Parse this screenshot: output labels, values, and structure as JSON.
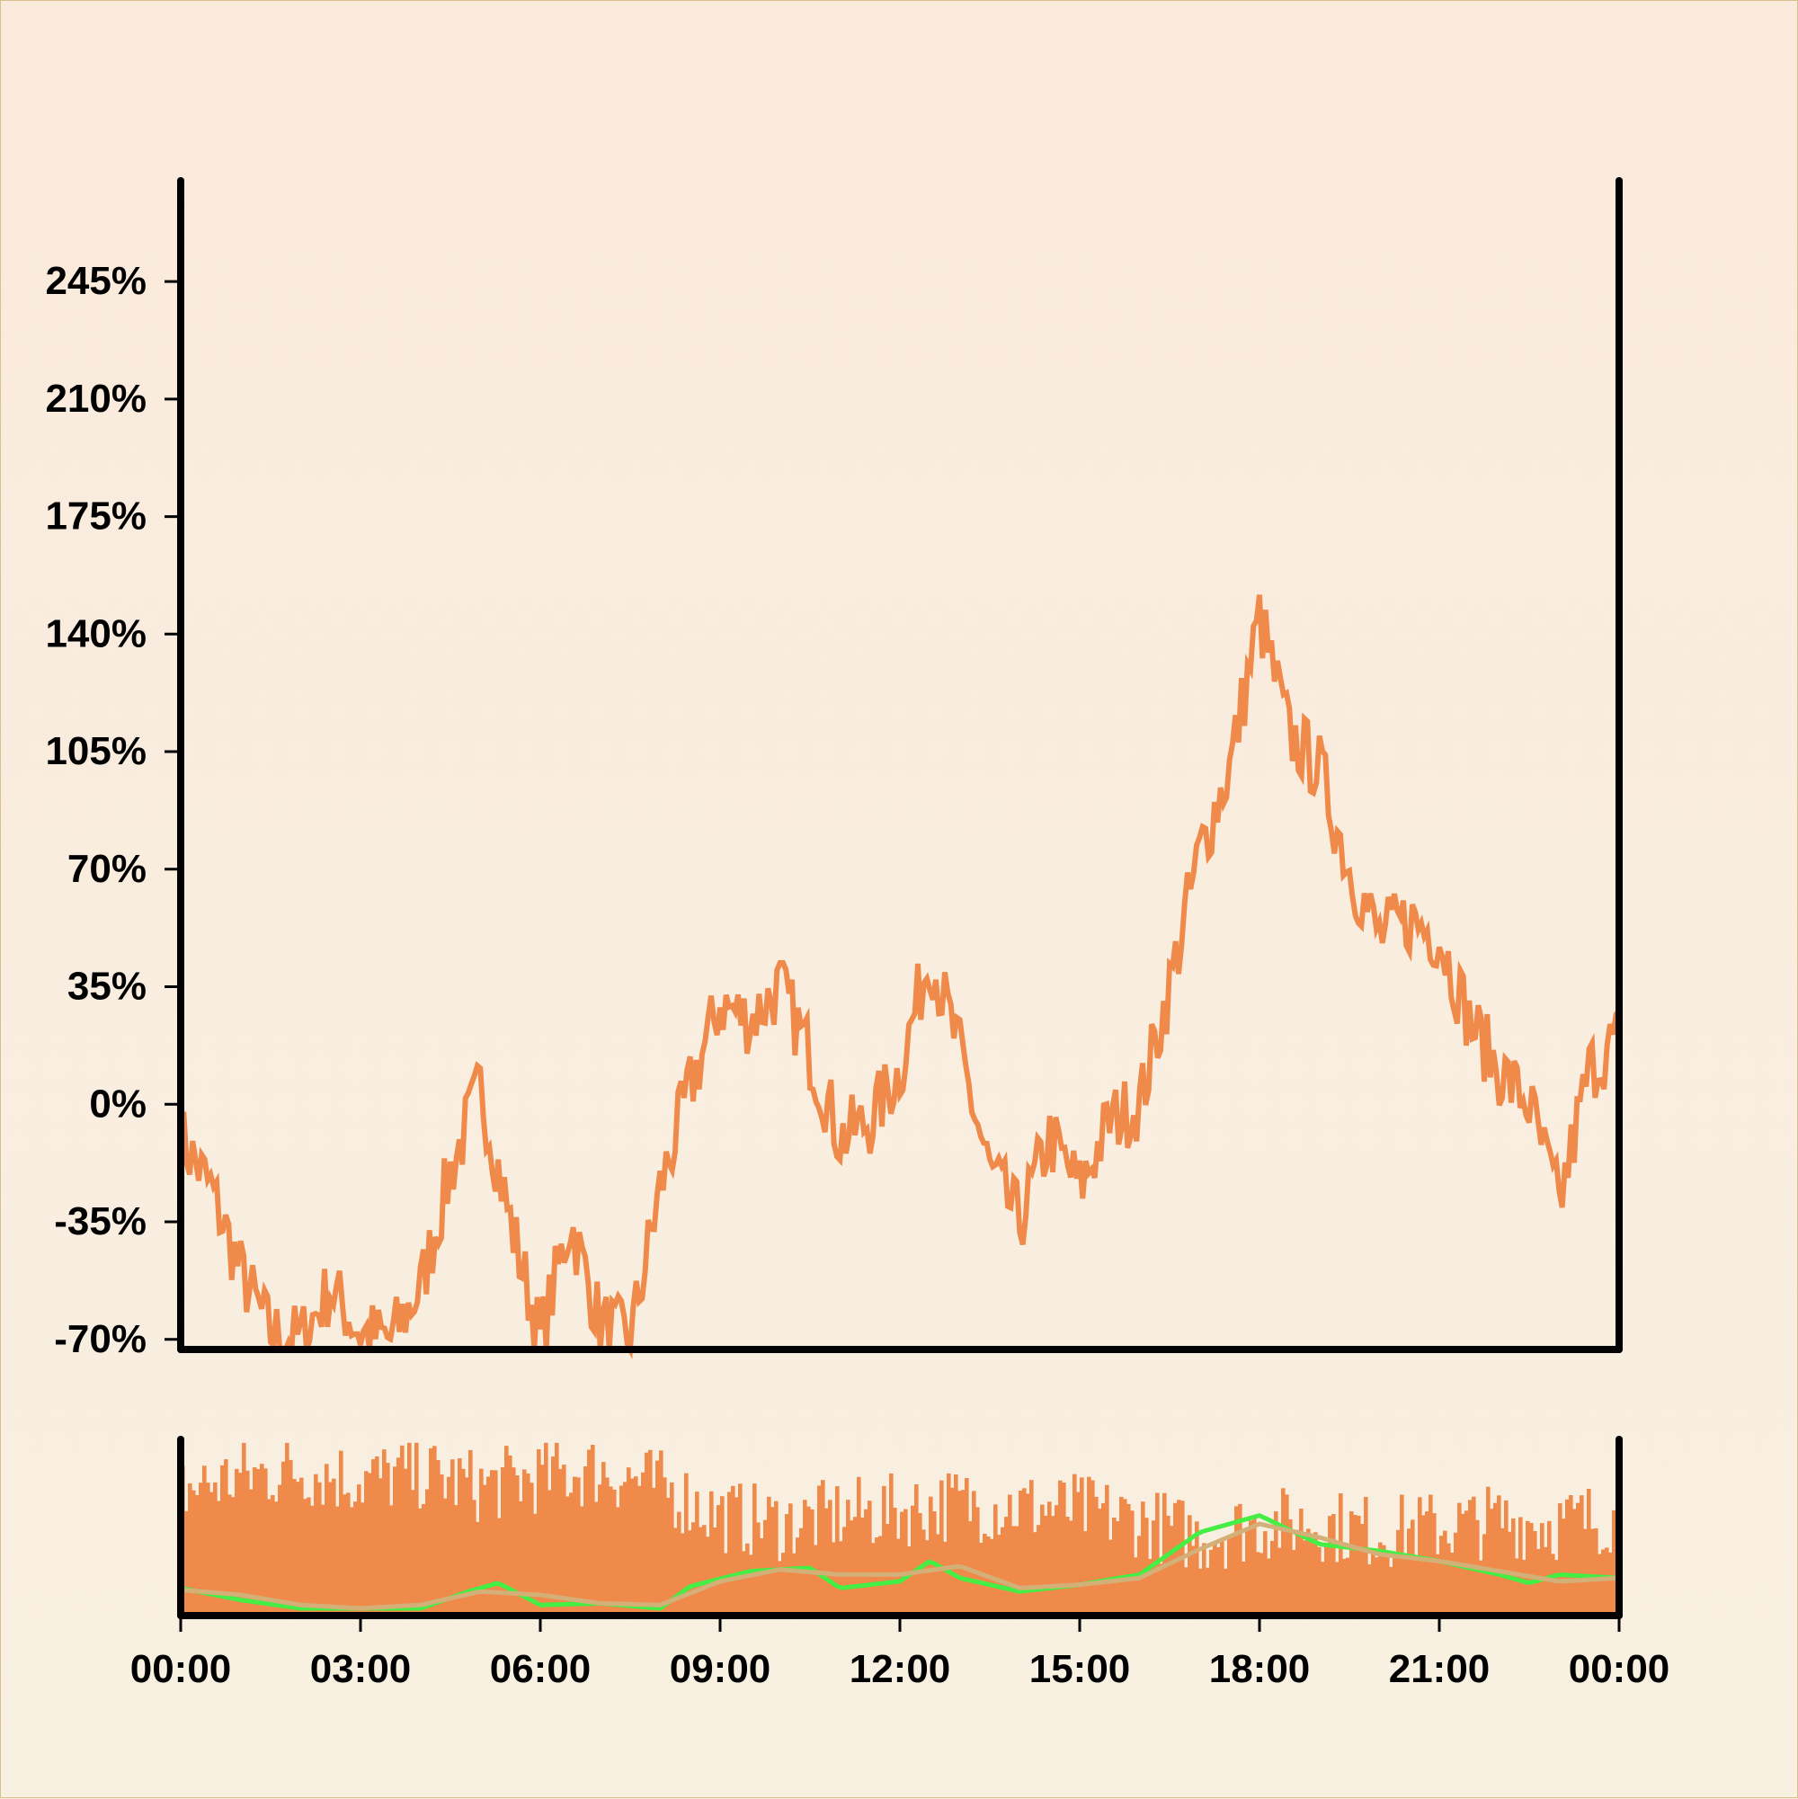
{
  "chart_data": [
    {
      "type": "line",
      "panel": "price",
      "title": "",
      "xlabel": "",
      "ylabel": "",
      "ylim": [
        -73,
        275
      ],
      "xlim": [
        0,
        24
      ],
      "yticks": [
        -70,
        -35,
        0,
        35,
        70,
        105,
        140,
        175,
        210,
        245
      ],
      "ytick_labels": [
        "-70%",
        "-35%",
        "0%",
        "35%",
        "70%",
        "105%",
        "140%",
        "175%",
        "210%",
        "245%"
      ],
      "line_color": "#ef8a4a",
      "series": [
        {
          "x": [
            0,
            0.5,
            1,
            1.5,
            2,
            2.5,
            3,
            3.5,
            4,
            4.5,
            5,
            5.5,
            6,
            6.5,
            7,
            7.5,
            8,
            8.5,
            9,
            9.5,
            10,
            10.5,
            11,
            11.5,
            12,
            12.5,
            13,
            13.5,
            14,
            14.5,
            15,
            15.5,
            16,
            16.5,
            17,
            17.5,
            18,
            18.5,
            19,
            19.5,
            20,
            20.5,
            21,
            21.5,
            22,
            22.5,
            23,
            23.5,
            24
          ],
          "y": [
            -10,
            -25,
            -50,
            -68,
            -70,
            -55,
            -68,
            -70,
            -55,
            -20,
            5,
            -35,
            -70,
            -35,
            -65,
            -70,
            -25,
            5,
            30,
            25,
            35,
            15,
            -10,
            -5,
            10,
            45,
            15,
            -20,
            -35,
            -10,
            -25,
            -5,
            0,
            35,
            75,
            100,
            145,
            110,
            100,
            70,
            50,
            55,
            50,
            25,
            10,
            0,
            -30,
            10,
            20
          ]
        }
      ]
    },
    {
      "type": "bar",
      "panel": "volume",
      "xlim": [
        0,
        24
      ],
      "xticks": [
        0,
        3,
        6,
        9,
        12,
        15,
        18,
        21,
        24
      ],
      "xtick_labels": [
        "00:00",
        "03:00",
        "06:00",
        "09:00",
        "12:00",
        "15:00",
        "18:00",
        "21:00",
        "00:00"
      ],
      "bar_color": "#ef8a4a",
      "ylim": [
        0,
        1
      ],
      "series": [
        {
          "x": [
            0,
            1,
            2,
            3,
            4,
            5,
            6,
            7,
            8,
            9,
            10,
            11,
            12,
            13,
            14,
            15,
            16,
            17,
            18,
            19,
            20,
            21,
            22,
            23,
            24
          ],
          "values": [
            0.7,
            0.78,
            0.82,
            0.76,
            0.8,
            0.72,
            0.78,
            0.82,
            0.72,
            0.55,
            0.5,
            0.55,
            0.58,
            0.62,
            0.6,
            0.58,
            0.52,
            0.42,
            0.5,
            0.5,
            0.45,
            0.48,
            0.52,
            0.5,
            0.55
          ]
        }
      ],
      "overlay_lines": [
        {
          "color": "#44ee44",
          "x": [
            0,
            1,
            2,
            3,
            4,
            4.8,
            5.3,
            6,
            7,
            8,
            8.5,
            9.5,
            10.5,
            11,
            12,
            12.5,
            13,
            14,
            15,
            16,
            17,
            18,
            19,
            20,
            21,
            22,
            22.5,
            23,
            24
          ],
          "values": [
            0.12,
            0.05,
            0.0,
            0.0,
            0.0,
            0.1,
            0.15,
            0.02,
            0.03,
            0.0,
            0.13,
            0.22,
            0.24,
            0.12,
            0.16,
            0.28,
            0.18,
            0.1,
            0.14,
            0.2,
            0.45,
            0.55,
            0.38,
            0.34,
            0.28,
            0.2,
            0.15,
            0.2,
            0.18
          ]
        },
        {
          "color": "#d4b078",
          "x": [
            0,
            1,
            2,
            3,
            4,
            5,
            6,
            7,
            8,
            9,
            10,
            11,
            12,
            13,
            14,
            15,
            16,
            17,
            18,
            19,
            20,
            21,
            22,
            23,
            24
          ],
          "values": [
            0.11,
            0.08,
            0.02,
            0.0,
            0.02,
            0.1,
            0.08,
            0.03,
            0.02,
            0.16,
            0.23,
            0.2,
            0.2,
            0.25,
            0.12,
            0.14,
            0.18,
            0.35,
            0.5,
            0.42,
            0.32,
            0.28,
            0.22,
            0.16,
            0.18
          ]
        }
      ]
    }
  ]
}
